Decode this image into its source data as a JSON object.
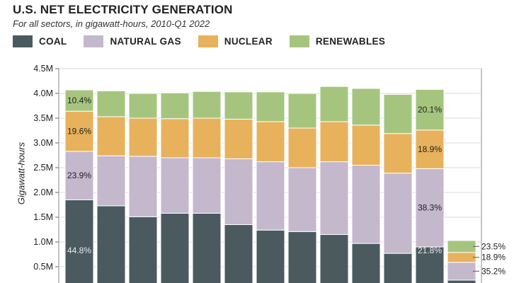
{
  "header": {
    "title": "U.S. NET ELECTRICITY GENERATION",
    "subtitle": "For all sectors, in gigawatt-hours, 2010-Q1 2022"
  },
  "legend": [
    {
      "label": "COAL",
      "color": "#4a5a5f"
    },
    {
      "label": "NATURAL GAS",
      "color": "#c4b8cc"
    },
    {
      "label": "NUCLEAR",
      "color": "#e8b25c"
    },
    {
      "label": "RENEWABLES",
      "color": "#a5c57f"
    }
  ],
  "chart_data": {
    "type": "bar",
    "stacked": true,
    "title": "U.S. NET ELECTRICITY GENERATION",
    "subtitle": "For all sectors, in gigawatt-hours, 2010-Q1 2022",
    "ylabel": "Gigawatt-hours",
    "ylim": [
      0,
      4500000
    ],
    "yticks": [
      {
        "value": 500000,
        "label": "0.5M"
      },
      {
        "value": 1000000,
        "label": "1.0M"
      },
      {
        "value": 1500000,
        "label": "1.5M"
      },
      {
        "value": 2000000,
        "label": "2.0M"
      },
      {
        "value": 2500000,
        "label": "2.5M"
      },
      {
        "value": 3000000,
        "label": "3.0M"
      },
      {
        "value": 3500000,
        "label": "3.5M"
      },
      {
        "value": 4000000,
        "label": "4.0M"
      },
      {
        "value": 4500000,
        "label": "4.5M"
      }
    ],
    "grid": true,
    "legend_position": "top",
    "bars": [
      {
        "coal": 1850000,
        "natural_gas": 980000,
        "nuclear": 810000,
        "renewables": 430000,
        "labels": {
          "coal": "44.8%",
          "natural_gas": "23.9%",
          "nuclear": "19.6%",
          "renewables": "10.4%"
        }
      },
      {
        "coal": 1730000,
        "natural_gas": 1010000,
        "nuclear": 790000,
        "renewables": 520000
      },
      {
        "coal": 1510000,
        "natural_gas": 1220000,
        "nuclear": 770000,
        "renewables": 500000
      },
      {
        "coal": 1580000,
        "natural_gas": 1120000,
        "nuclear": 790000,
        "renewables": 520000
      },
      {
        "coal": 1580000,
        "natural_gas": 1120000,
        "nuclear": 800000,
        "renewables": 540000
      },
      {
        "coal": 1350000,
        "natural_gas": 1330000,
        "nuclear": 800000,
        "renewables": 550000
      },
      {
        "coal": 1240000,
        "natural_gas": 1380000,
        "nuclear": 810000,
        "renewables": 600000
      },
      {
        "coal": 1210000,
        "natural_gas": 1290000,
        "nuclear": 800000,
        "renewables": 700000
      },
      {
        "coal": 1150000,
        "natural_gas": 1470000,
        "nuclear": 810000,
        "renewables": 710000
      },
      {
        "coal": 970000,
        "natural_gas": 1580000,
        "nuclear": 810000,
        "renewables": 740000
      },
      {
        "coal": 770000,
        "natural_gas": 1620000,
        "nuclear": 800000,
        "renewables": 790000
      },
      {
        "coal": 900000,
        "natural_gas": 1580000,
        "nuclear": 780000,
        "renewables": 820000,
        "labels": {
          "coal": "21.8%",
          "natural_gas": "38.3%",
          "nuclear": "18.9%",
          "renewables": "20.1%"
        }
      },
      {
        "coal": 230000,
        "natural_gas": 360000,
        "nuclear": 200000,
        "renewables": 240000,
        "labels": {
          "natural_gas": "35.2%",
          "nuclear": "18.9%",
          "renewables": "23.5%"
        }
      }
    ]
  }
}
